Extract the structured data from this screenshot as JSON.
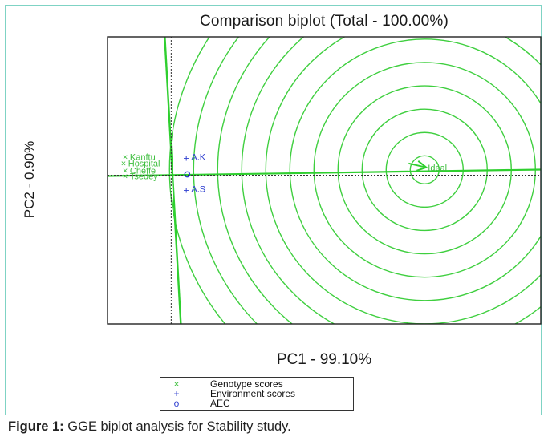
{
  "chart_data": {
    "type": "scatter",
    "title": "Comparison biplot (Total - 100.00%)",
    "xlabel": "PC1 - 99.10%",
    "ylabel": "PC2 - 0.90%",
    "xlim": [
      -0.5,
      2.0
    ],
    "ylim": [
      -1.0,
      0.9
    ],
    "grid": false,
    "legend_placement": "bottom",
    "genotypes": [
      {
        "name": "Kanftu",
        "x": -0.38,
        "y": 0.1
      },
      {
        "name": "Hospital",
        "x": -0.39,
        "y": 0.07
      },
      {
        "name": "Cheffe",
        "x": -0.38,
        "y": 0.01
      },
      {
        "name": "Tsedey",
        "x": -0.38,
        "y": -0.01
      }
    ],
    "environments": [
      {
        "name": "A.K",
        "x": -0.04,
        "y": 0.1
      },
      {
        "name": "A.S",
        "x": -0.04,
        "y": -0.11
      }
    ],
    "aec": {
      "x": -0.04,
      "y": -0.01
    },
    "ideal": {
      "name": "Ideal",
      "x": 1.33,
      "y": 0.02
    },
    "concentric_circles": 11,
    "colors": {
      "genotype": "#3fbf3f",
      "environment": "#2f3fd0",
      "aec": "#2f3fd0",
      "circles": "#3fcf3f",
      "axis": "#222222"
    }
  },
  "legend": {
    "items": [
      {
        "symbol": "×",
        "label": "Genotype scores",
        "color": "#3fbf3f"
      },
      {
        "symbol": "+",
        "label": "Environment scores",
        "color": "#2f3fd0"
      },
      {
        "symbol": "o",
        "label": "AEC",
        "color": "#2f3fd0"
      }
    ]
  },
  "caption": {
    "label": "Figure 1:",
    "text": " GGE biplot analysis for Stability study."
  }
}
